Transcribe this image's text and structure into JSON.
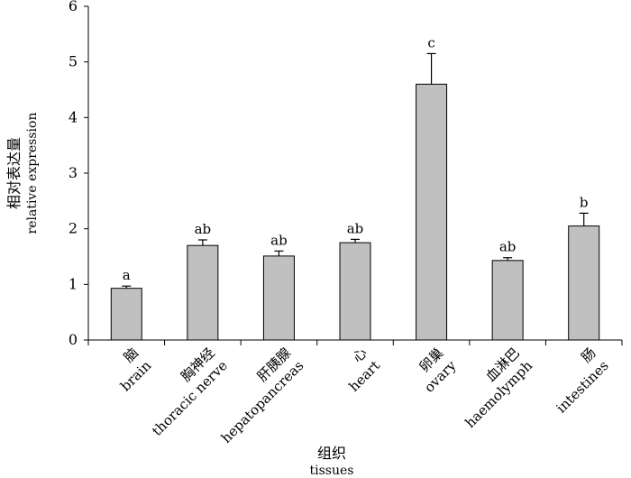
{
  "chart_data": {
    "type": "bar",
    "categories": [
      {
        "zh": "脑",
        "en": "brain"
      },
      {
        "zh": "胸神经",
        "en": "thoracic nerve"
      },
      {
        "zh": "肝胰腺",
        "en": "hepatopancreas"
      },
      {
        "zh": "心",
        "en": "heart"
      },
      {
        "zh": "卵巢",
        "en": "ovary"
      },
      {
        "zh": "血淋巴",
        "en": "haemolymph"
      },
      {
        "zh": "肠",
        "en": "intestines"
      }
    ],
    "values": [
      0.93,
      1.7,
      1.51,
      1.75,
      4.6,
      1.43,
      2.05
    ],
    "error": [
      0.04,
      0.1,
      0.09,
      0.06,
      0.55,
      0.05,
      0.23
    ],
    "significance": [
      "a",
      "ab",
      "ab",
      "ab",
      "c",
      "ab",
      "b"
    ],
    "ylim": [
      0,
      6
    ],
    "yticks": [
      "0",
      "1",
      "2",
      "3",
      "4",
      "5",
      "6"
    ],
    "ylabel_zh": "相对表达量",
    "ylabel_en": "relative expression",
    "xlabel_zh": "组织",
    "xlabel_en": "tissues",
    "bar_color": "#c0c0c0",
    "grid": false
  }
}
